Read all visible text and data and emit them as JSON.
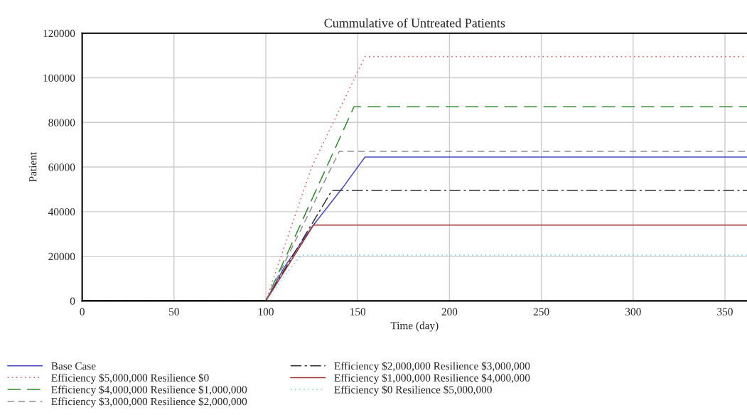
{
  "chart_data": {
    "type": "line",
    "title": "Cummulative of Untreated Patients",
    "xlabel": "Time (day)",
    "ylabel": "Patient",
    "xlim": [
      0,
      362
    ],
    "xticks": [
      0,
      50,
      100,
      150,
      200,
      250,
      300,
      350
    ],
    "ylim": [
      0,
      120000
    ],
    "yticks": [
      0,
      20000,
      40000,
      60000,
      80000,
      100000,
      120000
    ],
    "grid": true,
    "legend": "bottom",
    "marker": "none",
    "series": [
      {
        "name": "Base Case",
        "color": "#4a4ac0",
        "line_style": "solid",
        "x": [
          0,
          100,
          110,
          125,
          143,
          154,
          362
        ],
        "values": [
          0,
          0,
          15000,
          33000,
          52000,
          64500,
          64500
        ]
      },
      {
        "name": "Efficiency $5,000,000 Resilience $0",
        "color": "#e05050",
        "line_style": "dotted",
        "x": [
          0,
          100,
          125,
          154,
          362
        ],
        "values": [
          0,
          0,
          60000,
          109500,
          109500
        ]
      },
      {
        "name": "Efficiency $4,000,000 Resilience $1,000,000",
        "color": "#2e8b2e",
        "line_style": "longdashed",
        "x": [
          0,
          100,
          148,
          362
        ],
        "values": [
          0,
          0,
          87000,
          87000
        ]
      },
      {
        "name": "Efficiency $3,000,000 Resilience $2,000,000",
        "color": "#909090",
        "line_style": "dashed",
        "x": [
          0,
          100,
          140,
          362
        ],
        "values": [
          0,
          0,
          67000,
          67000
        ]
      },
      {
        "name": "Efficiency $2,000,000 Resilience $3,000,000",
        "color": "#303030",
        "line_style": "dashdot",
        "x": [
          0,
          100,
          136,
          362
        ],
        "values": [
          0,
          0,
          49500,
          49500
        ]
      },
      {
        "name": "Efficiency $1,000,000 Resilience $4,000,000",
        "color": "#a03030",
        "line_style": "solid",
        "x": [
          0,
          100,
          126,
          362
        ],
        "values": [
          0,
          0,
          34000,
          34000
        ]
      },
      {
        "name": "Efficiency $0 Resilience $5,000,000",
        "color": "#70c8e8",
        "line_style": "dotted",
        "x": [
          0,
          100,
          119,
          362
        ],
        "values": [
          0,
          0,
          20500,
          20500
        ]
      }
    ]
  }
}
